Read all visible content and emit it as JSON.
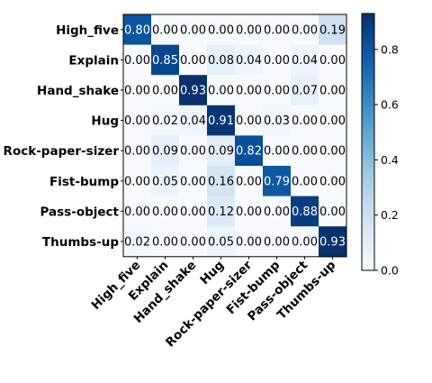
{
  "chart_data": {
    "type": "heatmap",
    "title": "",
    "xlabel": "",
    "ylabel": "",
    "rows": [
      "High_five",
      "Explain",
      "Hand_shake",
      "Hug",
      "Rock-paper-sizer",
      "Fist-bump",
      "Pass-object",
      "Thumbs-up"
    ],
    "cols": [
      "High_five",
      "Explain",
      "Hand_shake",
      "Hug",
      "Rock-paper-sizer",
      "Fist-bump",
      "Pass-object",
      "Thumbs-up"
    ],
    "values": [
      [
        0.8,
        0.0,
        0.0,
        0.0,
        0.0,
        0.0,
        0.0,
        0.19
      ],
      [
        0.0,
        0.85,
        0.0,
        0.08,
        0.04,
        0.0,
        0.04,
        0.0
      ],
      [
        0.0,
        0.0,
        0.93,
        0.0,
        0.0,
        0.0,
        0.07,
        0.0
      ],
      [
        0.0,
        0.02,
        0.04,
        0.91,
        0.0,
        0.03,
        0.0,
        0.0
      ],
      [
        0.0,
        0.09,
        0.0,
        0.09,
        0.82,
        0.0,
        0.0,
        0.0
      ],
      [
        0.0,
        0.05,
        0.0,
        0.16,
        0.0,
        0.79,
        0.0,
        0.0
      ],
      [
        0.0,
        0.0,
        0.0,
        0.12,
        0.0,
        0.0,
        0.88,
        0.0
      ],
      [
        0.02,
        0.0,
        0.0,
        0.05,
        0.0,
        0.0,
        0.0,
        0.93
      ]
    ],
    "value_format": "0.00",
    "colormap": "Blues",
    "colormap_stops": [
      "#f7fbff",
      "#deebf7",
      "#c6dbef",
      "#9ecae1",
      "#6baed6",
      "#4292c6",
      "#2171b5",
      "#08519c",
      "#08306b"
    ],
    "colorbar": {
      "range": [
        0.0,
        0.93
      ],
      "ticks": [
        0.0,
        0.2,
        0.4,
        0.6,
        0.8
      ],
      "tick_labels": [
        "0.0",
        "0.2",
        "0.4",
        "0.6",
        "0.8"
      ],
      "position": "right"
    },
    "grid": false,
    "x_tick_rotation_deg": 45
  }
}
